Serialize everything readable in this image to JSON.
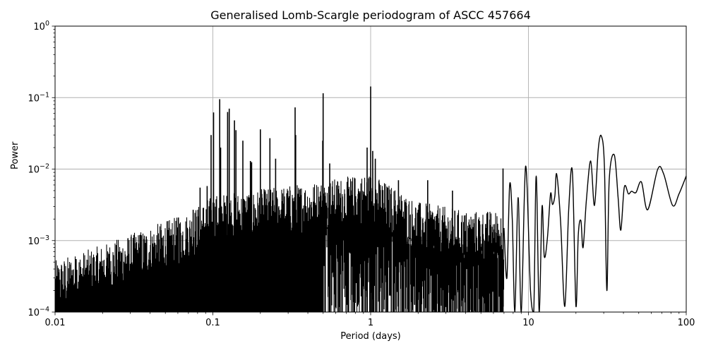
{
  "chart_data": {
    "type": "line",
    "title": "Generalised Lomb-Scargle periodogram of ASCC 457664",
    "xlabel": "Period (days)",
    "ylabel": "Power",
    "xscale": "log",
    "yscale": "log",
    "xlim": [
      0.01,
      100
    ],
    "ylim": [
      0.0001,
      1
    ],
    "grid": true,
    "legend": null,
    "line_color": "#000000",
    "grid_color": "#b0b0b0",
    "x_ticks": [
      {
        "value": 0.01,
        "label": "0.01"
      },
      {
        "value": 0.1,
        "label": "0.1"
      },
      {
        "value": 1,
        "label": "1"
      },
      {
        "value": 10,
        "label": "10"
      },
      {
        "value": 100,
        "label": "100"
      }
    ],
    "y_ticks": [
      {
        "value": 0.0001,
        "base": "10",
        "exp": "−4"
      },
      {
        "value": 0.001,
        "base": "10",
        "exp": "−3"
      },
      {
        "value": 0.01,
        "base": "10",
        "exp": "−2"
      },
      {
        "value": 0.1,
        "base": "10",
        "exp": "−1"
      },
      {
        "value": 1,
        "base": "10",
        "exp": "0"
      }
    ],
    "noise_envelope": [
      {
        "period": 0.01,
        "power": 0.0003
      },
      {
        "period": 0.02,
        "power": 0.0005
      },
      {
        "period": 0.04,
        "power": 0.0009
      },
      {
        "period": 0.07,
        "power": 0.0014
      },
      {
        "period": 0.1,
        "power": 0.0025
      },
      {
        "period": 0.2,
        "power": 0.003
      },
      {
        "period": 0.5,
        "power": 0.004
      },
      {
        "period": 1.0,
        "power": 0.005
      },
      {
        "period": 2.0,
        "power": 0.002
      },
      {
        "period": 4.0,
        "power": 0.0015
      },
      {
        "period": 7.0,
        "power": 0.0015
      }
    ],
    "peaks": [
      {
        "period": 0.0136,
        "power": 0.00055
      },
      {
        "period": 0.022,
        "power": 0.00065
      },
      {
        "period": 0.0345,
        "power": 0.0012
      },
      {
        "period": 0.047,
        "power": 0.0014
      },
      {
        "period": 0.0605,
        "power": 0.0021
      },
      {
        "period": 0.075,
        "power": 0.0027
      },
      {
        "period": 0.083,
        "power": 0.0055
      },
      {
        "period": 0.092,
        "power": 0.0058
      },
      {
        "period": 0.0975,
        "power": 0.03
      },
      {
        "period": 0.101,
        "power": 0.062
      },
      {
        "period": 0.1105,
        "power": 0.095
      },
      {
        "period": 0.112,
        "power": 0.02
      },
      {
        "period": 0.124,
        "power": 0.063
      },
      {
        "period": 0.127,
        "power": 0.07
      },
      {
        "period": 0.137,
        "power": 0.048
      },
      {
        "period": 0.14,
        "power": 0.035
      },
      {
        "period": 0.155,
        "power": 0.025
      },
      {
        "period": 0.173,
        "power": 0.013
      },
      {
        "period": 0.176,
        "power": 0.0125
      },
      {
        "period": 0.2,
        "power": 0.036
      },
      {
        "period": 0.23,
        "power": 0.027
      },
      {
        "period": 0.25,
        "power": 0.014
      },
      {
        "period": 0.332,
        "power": 0.073
      },
      {
        "period": 0.335,
        "power": 0.03
      },
      {
        "period": 0.5,
        "power": 0.115
      },
      {
        "period": 0.497,
        "power": 0.025
      },
      {
        "period": 0.55,
        "power": 0.012
      },
      {
        "period": 0.95,
        "power": 0.02
      },
      {
        "period": 1.0,
        "power": 0.143
      },
      {
        "period": 1.03,
        "power": 0.018
      },
      {
        "period": 1.07,
        "power": 0.014
      },
      {
        "period": 1.5,
        "power": 0.007
      },
      {
        "period": 2.3,
        "power": 0.007
      },
      {
        "period": 3.3,
        "power": 0.005
      },
      {
        "period": 6.9,
        "power": 0.0102
      }
    ],
    "smooth_curve": [
      [
        7.0,
        0.0015
      ],
      [
        7.3,
        0.0003
      ],
      [
        7.6,
        0.006
      ],
      [
        7.9,
        0.002
      ],
      [
        8.2,
        0.0001
      ],
      [
        8.6,
        0.004
      ],
      [
        9.0,
        0.0001
      ],
      [
        9.6,
        0.011
      ],
      [
        10.3,
        0.0002
      ],
      [
        10.8,
        0.0001
      ],
      [
        11.2,
        0.008
      ],
      [
        11.7,
        0.0001
      ],
      [
        12.2,
        0.003
      ],
      [
        12.6,
        0.0006
      ],
      [
        13.2,
        0.0011
      ],
      [
        13.8,
        0.0045
      ],
      [
        14.2,
        0.0032
      ],
      [
        14.7,
        0.0042
      ],
      [
        15.1,
        0.0085
      ],
      [
        16.0,
        0.0018
      ],
      [
        17.0,
        0.00012
      ],
      [
        18.0,
        0.0028
      ],
      [
        19.0,
        0.009
      ],
      [
        20.0,
        0.00012
      ],
      [
        20.7,
        0.0012
      ],
      [
        21.5,
        0.0019
      ],
      [
        22.2,
        0.0008
      ],
      [
        23.3,
        0.0037
      ],
      [
        24.8,
        0.013
      ],
      [
        26.2,
        0.0031
      ],
      [
        27.7,
        0.019
      ],
      [
        29.0,
        0.029
      ],
      [
        30.3,
        0.011
      ],
      [
        31.4,
        0.0002
      ],
      [
        32.5,
        0.007
      ],
      [
        35.0,
        0.0158
      ],
      [
        37.0,
        0.004
      ],
      [
        38.5,
        0.0014
      ],
      [
        40.5,
        0.0056
      ],
      [
        43.0,
        0.0045
      ],
      [
        45.0,
        0.0049
      ],
      [
        48.0,
        0.0047
      ],
      [
        52.0,
        0.0066
      ],
      [
        57.0,
        0.0027
      ],
      [
        66.0,
        0.01
      ],
      [
        72.0,
        0.0085
      ],
      [
        82.0,
        0.0031
      ],
      [
        90.0,
        0.0045
      ],
      [
        100.0,
        0.008
      ]
    ]
  }
}
